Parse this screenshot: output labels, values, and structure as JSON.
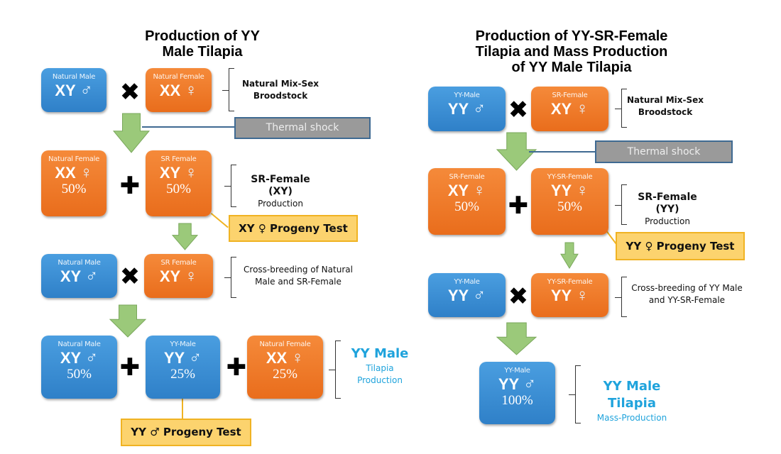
{
  "colors": {
    "male": "#3d8fd4",
    "female": "#ef7a2a",
    "arrow": "#9bc97a",
    "callout": "#fcd36e",
    "thermal": "#9a9a9a",
    "highlight_text": "#1fa3dc"
  },
  "panels": [
    {
      "title": [
        "Production of YY",
        "Male Tilapia"
      ],
      "boxes": [
        {
          "label": "Natural Male",
          "genotype": "XY",
          "sex": "♂",
          "percent": ""
        },
        {
          "label": "Natural Female",
          "genotype": "XX",
          "sex": "♀",
          "percent": ""
        },
        {
          "label": "Natural Female",
          "genotype": "XX",
          "sex": "♀",
          "percent": "50%"
        },
        {
          "label": "SR Female",
          "genotype": "XY",
          "sex": "♀",
          "percent": "50%"
        },
        {
          "label": "Natural Male",
          "genotype": "XY",
          "sex": "♂",
          "percent": ""
        },
        {
          "label": "SR Female",
          "genotype": "XY",
          "sex": "♀",
          "percent": ""
        },
        {
          "label": "Natural Male",
          "genotype": "XY",
          "sex": "♂",
          "percent": "50%"
        },
        {
          "label": "YY-Male",
          "genotype": "YY",
          "sex": "♂",
          "percent": "25%"
        },
        {
          "label": "Natural Female",
          "genotype": "XX",
          "sex": "♀",
          "percent": "25%"
        }
      ],
      "operators": [
        "✖",
        "✚",
        "✖",
        "✚",
        "✚"
      ],
      "notes": [
        {
          "lines": [
            "Natural Mix-Sex",
            "Broodstock"
          ],
          "style": "bold"
        },
        {
          "lines": [
            "SR-Female (XY)",
            "Production"
          ],
          "style": "first-bold"
        },
        {
          "lines": [
            "Cross-breeding of Natural",
            "Male and SR-Female"
          ],
          "style": "plain"
        },
        {
          "lines": [
            "YY Male",
            "Tilapia",
            "Production"
          ],
          "style": "cyan"
        }
      ],
      "thermal": "Thermal shock",
      "callouts": [
        "XY ♀ Progeny Test",
        "YY ♂ Progeny Test"
      ]
    },
    {
      "title": [
        "Production of YY-SR-Female",
        "Tilapia and Mass Production",
        "of YY Male Tilapia"
      ],
      "boxes": [
        {
          "label": "YY-Male",
          "genotype": "YY",
          "sex": "♂",
          "percent": ""
        },
        {
          "label": "SR-Female",
          "genotype": "XY",
          "sex": "♀",
          "percent": ""
        },
        {
          "label": "SR-Female",
          "genotype": "XY",
          "sex": "♀",
          "percent": "50%"
        },
        {
          "label": "YY-SR-Female",
          "genotype": "YY",
          "sex": "♀",
          "percent": "50%"
        },
        {
          "label": "YY-Male",
          "genotype": "YY",
          "sex": "♂",
          "percent": ""
        },
        {
          "label": "YY-SR-Female",
          "genotype": "YY",
          "sex": "♀",
          "percent": ""
        },
        {
          "label": "YY-Male",
          "genotype": "YY",
          "sex": "♂",
          "percent": "100%"
        }
      ],
      "operators": [
        "✖",
        "✚",
        "✖"
      ],
      "notes": [
        {
          "lines": [
            "Natural Mix-Sex",
            "Broodstock"
          ],
          "style": "bold"
        },
        {
          "lines": [
            "SR-Female (YY)",
            "Production"
          ],
          "style": "first-bold"
        },
        {
          "lines": [
            "Cross-breeding of YY Male",
            "and YY-SR-Female"
          ],
          "style": "plain"
        },
        {
          "lines": [
            "YY Male Tilapia",
            "Mass-Production"
          ],
          "style": "cyan"
        }
      ],
      "thermal": "Thermal shock",
      "callouts": [
        "YY ♀ Progeny Test"
      ]
    }
  ]
}
